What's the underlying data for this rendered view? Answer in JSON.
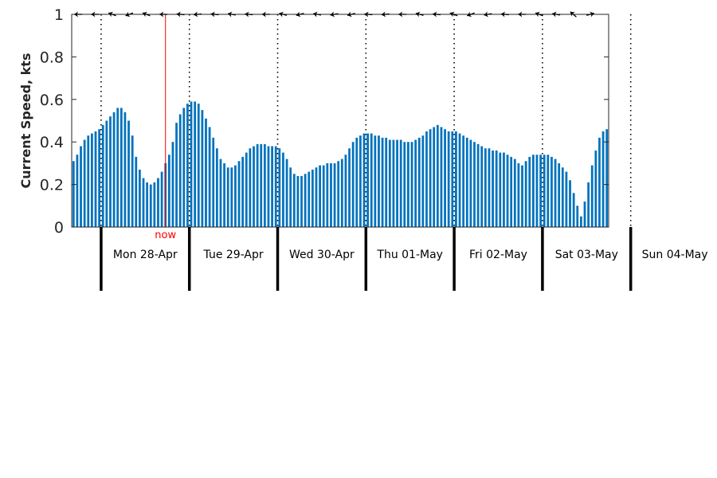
{
  "chart_data": {
    "type": "bar",
    "ylabel": "Current Speed, kts",
    "ylim": [
      0,
      1
    ],
    "yticks": [
      "0",
      "0.2",
      "0.4",
      "0.6",
      "0.8",
      "1"
    ],
    "bar_color": "#0072BD",
    "now_color": "#ff0000",
    "now_label": "now",
    "now_index": 25,
    "day_start_indices": [
      8,
      32,
      56,
      80,
      104,
      128,
      152
    ],
    "days": [
      "Mon 28-Apr",
      "Tue 29-Apr",
      "Wed 30-Apr",
      "Thu 01-May",
      "Fri 02-May",
      "Sat 03-May",
      "Sun 04-May"
    ],
    "values": [
      0.31,
      0.34,
      0.38,
      0.41,
      0.43,
      0.44,
      0.45,
      0.46,
      0.48,
      0.5,
      0.52,
      0.54,
      0.56,
      0.56,
      0.54,
      0.5,
      0.43,
      0.33,
      0.27,
      0.23,
      0.21,
      0.2,
      0.21,
      0.23,
      0.26,
      0.3,
      0.34,
      0.4,
      0.49,
      0.53,
      0.56,
      0.58,
      0.59,
      0.59,
      0.58,
      0.55,
      0.51,
      0.47,
      0.42,
      0.37,
      0.32,
      0.3,
      0.28,
      0.28,
      0.29,
      0.31,
      0.33,
      0.35,
      0.37,
      0.38,
      0.39,
      0.39,
      0.39,
      0.38,
      0.38,
      0.38,
      0.37,
      0.35,
      0.32,
      0.28,
      0.25,
      0.24,
      0.24,
      0.25,
      0.26,
      0.27,
      0.28,
      0.29,
      0.29,
      0.3,
      0.3,
      0.3,
      0.31,
      0.32,
      0.34,
      0.37,
      0.4,
      0.42,
      0.43,
      0.44,
      0.44,
      0.44,
      0.43,
      0.43,
      0.42,
      0.42,
      0.41,
      0.41,
      0.41,
      0.41,
      0.4,
      0.4,
      0.4,
      0.41,
      0.42,
      0.43,
      0.45,
      0.46,
      0.47,
      0.48,
      0.47,
      0.46,
      0.45,
      0.45,
      0.45,
      0.44,
      0.43,
      0.42,
      0.41,
      0.4,
      0.39,
      0.38,
      0.37,
      0.37,
      0.36,
      0.36,
      0.35,
      0.35,
      0.34,
      0.33,
      0.32,
      0.3,
      0.29,
      0.31,
      0.33,
      0.34,
      0.34,
      0.34,
      0.34,
      0.34,
      0.33,
      0.32,
      0.3,
      0.28,
      0.26,
      0.22,
      0.16,
      0.1,
      0.05,
      0.12,
      0.21,
      0.29,
      0.36,
      0.42,
      0.45,
      0.46
    ],
    "direction_arrows_deg": [
      180,
      180,
      160,
      200,
      160,
      180,
      175,
      185,
      175,
      170,
      175,
      180,
      165,
      195,
      170,
      190,
      195,
      175,
      185,
      180,
      165,
      175,
      160,
      200,
      190,
      175,
      180,
      160,
      170,
      140,
      15
    ]
  }
}
